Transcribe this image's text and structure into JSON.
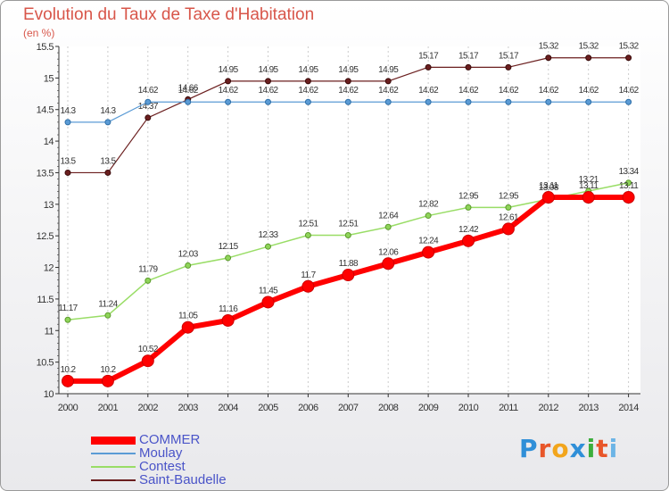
{
  "header": {
    "title": "Evolution du Taux de Taxe d'Habitation",
    "unit": "(en %)"
  },
  "logo": {
    "text": "Proxiti"
  },
  "colors": {
    "COMMER": "#ff0000",
    "Moulay": "#5b9bd5",
    "Contest": "#99dd66",
    "Saint-Baudelle": "#6b1f1f",
    "axis": "#333333",
    "grid": "#cccccc"
  },
  "chart_data": {
    "type": "line",
    "title": "Evolution du Taux de Taxe d'Habitation",
    "ylabel": "(en %)",
    "x": [
      "2000",
      "2001",
      "2002",
      "2003",
      "2004",
      "2005",
      "2006",
      "2007",
      "2008",
      "2009",
      "2010",
      "2011",
      "2012",
      "2013",
      "2014"
    ],
    "yticks": [
      "10",
      "10.5",
      "11",
      "11.5",
      "12",
      "12.5",
      "13",
      "13.5",
      "14",
      "14.5",
      "15",
      "15.5"
    ],
    "ylim": [
      10,
      15.5
    ],
    "grid": "vertical",
    "legend": "bottom-left",
    "series": [
      {
        "name": "COMMER",
        "values": [
          10.2,
          10.2,
          10.52,
          11.05,
          11.16,
          11.45,
          11.7,
          11.88,
          12.06,
          12.24,
          12.42,
          12.61,
          13.11,
          13.11,
          13.11
        ],
        "labels": [
          "10.2",
          "10.2",
          "10.52",
          "11.05",
          "11.16",
          "11.45",
          "11.7",
          "11.88",
          "12.06",
          "12.24",
          "12.42",
          "12.61",
          "13.11",
          "13.11",
          "13.11"
        ]
      },
      {
        "name": "Moulay",
        "values": [
          14.3,
          14.3,
          14.62,
          14.62,
          14.62,
          14.62,
          14.62,
          14.62,
          14.62,
          14.62,
          14.62,
          14.62,
          14.62,
          14.62,
          14.62
        ],
        "labels": [
          "14.3",
          "14.3",
          "14.62",
          "14.62",
          "14.62",
          "14.62",
          "14.62",
          "14.62",
          "14.62",
          "14.62",
          "14.62",
          "14.62",
          "14.62",
          "14.62",
          "14.62"
        ]
      },
      {
        "name": "Contest",
        "values": [
          11.17,
          11.24,
          11.79,
          12.03,
          12.15,
          12.33,
          12.51,
          12.51,
          12.64,
          12.82,
          12.95,
          12.95,
          13.08,
          13.21,
          13.34
        ],
        "labels": [
          "11.17",
          "11.24",
          "11.79",
          "12.03",
          "12.15",
          "12.33",
          "12.51",
          "12.51",
          "12.64",
          "12.82",
          "12.95",
          "12.95",
          "13.08",
          "13.21",
          "13.34"
        ]
      },
      {
        "name": "Saint-Baudelle",
        "values": [
          13.5,
          13.5,
          14.37,
          14.66,
          14.95,
          14.95,
          14.95,
          14.95,
          14.95,
          15.17,
          15.17,
          15.17,
          15.32,
          15.32,
          15.32
        ],
        "labels": [
          "13.5",
          "13.5",
          "14.37",
          "14.66",
          "14.95",
          "14.95",
          "14.95",
          "14.95",
          "14.95",
          "15.17",
          "15.17",
          "15.17",
          "15.32",
          "15.32",
          "15.32"
        ]
      }
    ]
  }
}
